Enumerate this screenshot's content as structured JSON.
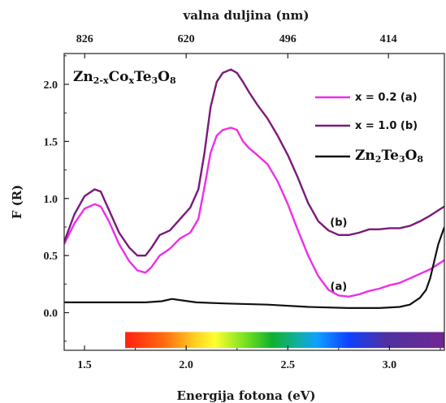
{
  "chart_data": {
    "type": "line",
    "xlabel": "Energija fotona (eV)",
    "ylabel": "F (R)",
    "top_xlabel": "valna duljina (nm)",
    "xlim": [
      1.4,
      3.27
    ],
    "ylim": [
      -0.33,
      2.27
    ],
    "x_ticks": [
      1.5,
      2.0,
      2.5,
      3.0
    ],
    "x_tick_labels": [
      "1.5",
      "2.0",
      "2.5",
      "3.0"
    ],
    "y_ticks": [
      0.0,
      0.5,
      1.0,
      1.5,
      2.0
    ],
    "y_tick_labels": [
      "0.0",
      "0.5",
      "1.0",
      "1.5",
      "2.0"
    ],
    "top_ticks": [
      {
        "energy": 1.501,
        "label": "826"
      },
      {
        "energy": 2.0,
        "label": "620"
      },
      {
        "energy": 2.5,
        "label": "496"
      },
      {
        "energy": 2.995,
        "label": "414"
      }
    ],
    "formula": {
      "parts": [
        [
          "Zn",
          ""
        ],
        [
          "2-x",
          "sub"
        ],
        [
          "Co",
          ""
        ],
        [
          "x",
          "sub"
        ],
        [
          "Te",
          ""
        ],
        [
          "3",
          "sub"
        ],
        [
          "O",
          ""
        ],
        [
          "8",
          "sub"
        ]
      ]
    },
    "legend": [
      {
        "label": "x = 0.2 (a)",
        "color": "#ee2ee8"
      },
      {
        "label": "x = 1.0 (b)",
        "color": "#7a1a7a"
      },
      {
        "label_parts": [
          [
            "Zn",
            ""
          ],
          [
            "2",
            "sub"
          ],
          [
            "Te",
            ""
          ],
          [
            "3",
            "sub"
          ],
          [
            "O",
            ""
          ],
          [
            "8",
            "sub"
          ]
        ],
        "color": "#111111"
      }
    ],
    "annotations": [
      {
        "text": "(b)",
        "x": 2.75,
        "y": 0.76
      },
      {
        "text": "(a)",
        "x": 2.75,
        "y": 0.2
      }
    ],
    "spectrum_bar": {
      "x_start": 1.7,
      "x_end": 3.27,
      "y_top": -0.17,
      "y_bottom": -0.31
    },
    "series": [
      {
        "name": "x = 0.2 (a)",
        "color": "#ee2ee8",
        "x": [
          1.4,
          1.45,
          1.5,
          1.55,
          1.58,
          1.62,
          1.67,
          1.72,
          1.76,
          1.8,
          1.83,
          1.87,
          1.92,
          1.97,
          2.02,
          2.06,
          2.09,
          2.12,
          2.15,
          2.18,
          2.22,
          2.25,
          2.28,
          2.31,
          2.35,
          2.4,
          2.45,
          2.5,
          2.55,
          2.6,
          2.65,
          2.7,
          2.75,
          2.8,
          2.85,
          2.9,
          2.95,
          3.0,
          3.05,
          3.1,
          3.15,
          3.2,
          3.27
        ],
        "y": [
          0.6,
          0.78,
          0.91,
          0.95,
          0.93,
          0.8,
          0.6,
          0.45,
          0.37,
          0.35,
          0.4,
          0.5,
          0.56,
          0.65,
          0.7,
          0.82,
          1.1,
          1.4,
          1.55,
          1.6,
          1.62,
          1.6,
          1.5,
          1.44,
          1.38,
          1.3,
          1.15,
          0.95,
          0.72,
          0.5,
          0.32,
          0.2,
          0.15,
          0.14,
          0.16,
          0.19,
          0.21,
          0.24,
          0.26,
          0.3,
          0.34,
          0.38,
          0.46
        ]
      },
      {
        "name": "x = 1.0 (b)",
        "color": "#7a1a7a",
        "x": [
          1.4,
          1.45,
          1.5,
          1.55,
          1.58,
          1.62,
          1.67,
          1.72,
          1.76,
          1.8,
          1.83,
          1.87,
          1.92,
          1.97,
          2.02,
          2.06,
          2.09,
          2.12,
          2.15,
          2.18,
          2.22,
          2.25,
          2.28,
          2.31,
          2.35,
          2.4,
          2.45,
          2.5,
          2.55,
          2.6,
          2.65,
          2.7,
          2.75,
          2.8,
          2.85,
          2.9,
          2.95,
          3.0,
          3.05,
          3.1,
          3.15,
          3.2,
          3.27
        ],
        "y": [
          0.62,
          0.86,
          1.02,
          1.08,
          1.06,
          0.9,
          0.7,
          0.57,
          0.5,
          0.5,
          0.57,
          0.68,
          0.72,
          0.82,
          0.92,
          1.08,
          1.4,
          1.8,
          2.02,
          2.1,
          2.13,
          2.1,
          2.02,
          1.93,
          1.82,
          1.7,
          1.55,
          1.38,
          1.18,
          0.96,
          0.8,
          0.72,
          0.68,
          0.68,
          0.7,
          0.73,
          0.73,
          0.74,
          0.74,
          0.76,
          0.8,
          0.85,
          0.93
        ]
      },
      {
        "color": "#111111",
        "x": [
          1.4,
          1.6,
          1.8,
          1.88,
          1.93,
          1.97,
          2.05,
          2.2,
          2.4,
          2.6,
          2.8,
          2.95,
          3.05,
          3.1,
          3.15,
          3.18,
          3.2,
          3.22,
          3.24,
          3.27
        ],
        "y": [
          0.09,
          0.09,
          0.09,
          0.1,
          0.12,
          0.11,
          0.09,
          0.08,
          0.07,
          0.05,
          0.04,
          0.04,
          0.05,
          0.07,
          0.13,
          0.2,
          0.3,
          0.45,
          0.6,
          0.75
        ]
      }
    ]
  }
}
